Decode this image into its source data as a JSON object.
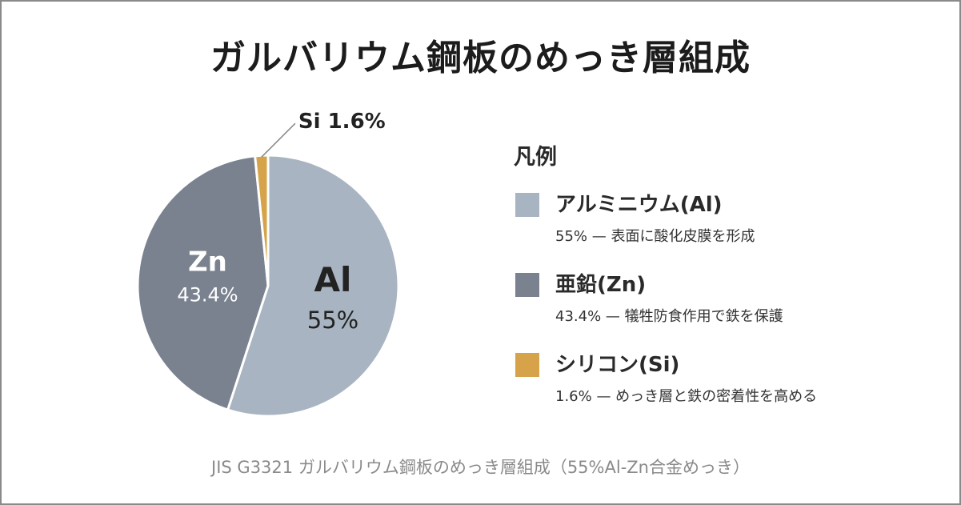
{
  "title": "ガルバリウム鋼板のめっき層組成",
  "footnote": "JIS G3321 ガルバリウム鋼板のめっき層組成（55%Al-Zn合金めっき）",
  "legend": {
    "title": "凡例",
    "items": [
      {
        "name": "アルミニウム(Al)",
        "desc": "55% — 表面に酸化皮膜を形成",
        "color": "#a8b4c1"
      },
      {
        "name": "亜鉛(Zn)",
        "desc": "43.4% — 犠牲防食作用で鉄を保護",
        "color": "#7a828f"
      },
      {
        "name": "シリコン(Si)",
        "desc": "1.6% — めっき層と鉄の密着性を高める",
        "color": "#d6a34a"
      }
    ]
  },
  "chart_data": {
    "type": "pie",
    "title": "ガルバリウム鋼板のめっき層組成",
    "slices": [
      {
        "symbol": "Al",
        "label": "55%",
        "value": 55,
        "color": "#a8b4c1",
        "text_color": "#222222"
      },
      {
        "symbol": "Zn",
        "label": "43.4%",
        "value": 43.4,
        "color": "#7a828f",
        "text_color": "#ffffff"
      },
      {
        "symbol": "Si",
        "label": "Si 1.6%",
        "value": 1.6,
        "color": "#d6a34a",
        "text_color": "#222222"
      }
    ],
    "legend_position": "right"
  }
}
